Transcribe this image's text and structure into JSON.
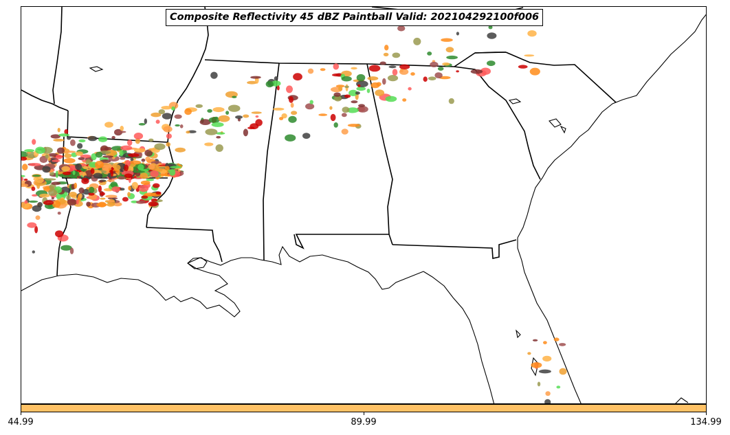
{
  "title": "Composite Reflectivity 45 dBZ Paintball Valid: 202104292100f006",
  "colorbar": {
    "color": "#ffc266",
    "ticks": [
      "44.99",
      "89.99",
      "134.99"
    ]
  },
  "colors": {
    "boundary": "#000000",
    "paintball_palette": [
      "#ff5a5a",
      "#cc0000",
      "#ff8c1a",
      "#f0a030",
      "#ffb347",
      "#ff9f4a",
      "#55dd55",
      "#2e8b2e",
      "#9a9a50",
      "#a05050",
      "#803030",
      "#404040"
    ]
  }
}
